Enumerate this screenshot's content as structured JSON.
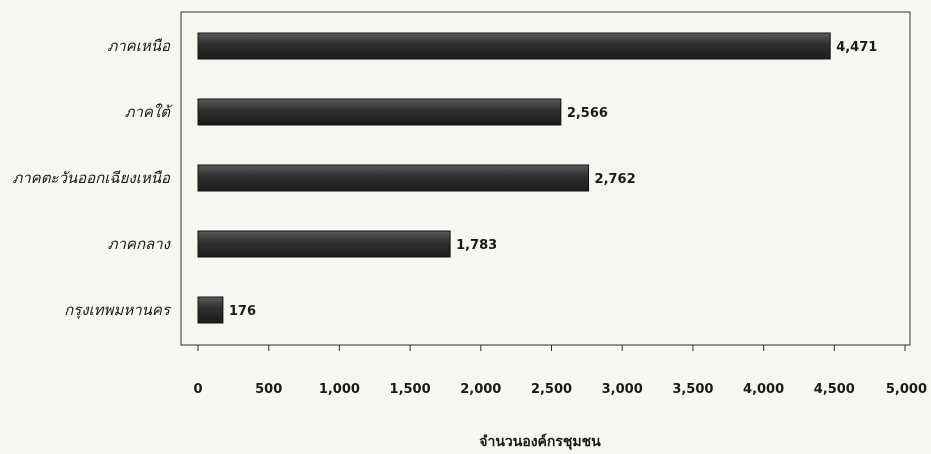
{
  "chart_data": {
    "type": "bar",
    "orientation": "horizontal",
    "categories": [
      "ภาคเหนือ",
      "ภาคใต้",
      "ภาคตะวันออกเฉียงเหนือ",
      "ภาคกลาง",
      "กรุงเทพมหานคร"
    ],
    "values": [
      4471,
      2566,
      2762,
      1783,
      176
    ],
    "value_labels": [
      "4,471",
      "2,566",
      "2,762",
      "1,783",
      "176"
    ],
    "xlabel": "จำนวนองค์กรชุมชน",
    "ylabel": "",
    "xlim": [
      0,
      5000
    ],
    "x_ticks": [
      "0",
      "500",
      "1,000",
      "1,500",
      "2,000",
      "2,500",
      "3,000",
      "3,500",
      "4,000",
      "4,500",
      "5,000"
    ],
    "x_tick_values": [
      0,
      500,
      1000,
      1500,
      2000,
      2500,
      3000,
      3500,
      4000,
      4500,
      5000
    ],
    "grid": false,
    "bar_color": "#3a3a3a",
    "legend": "none"
  }
}
